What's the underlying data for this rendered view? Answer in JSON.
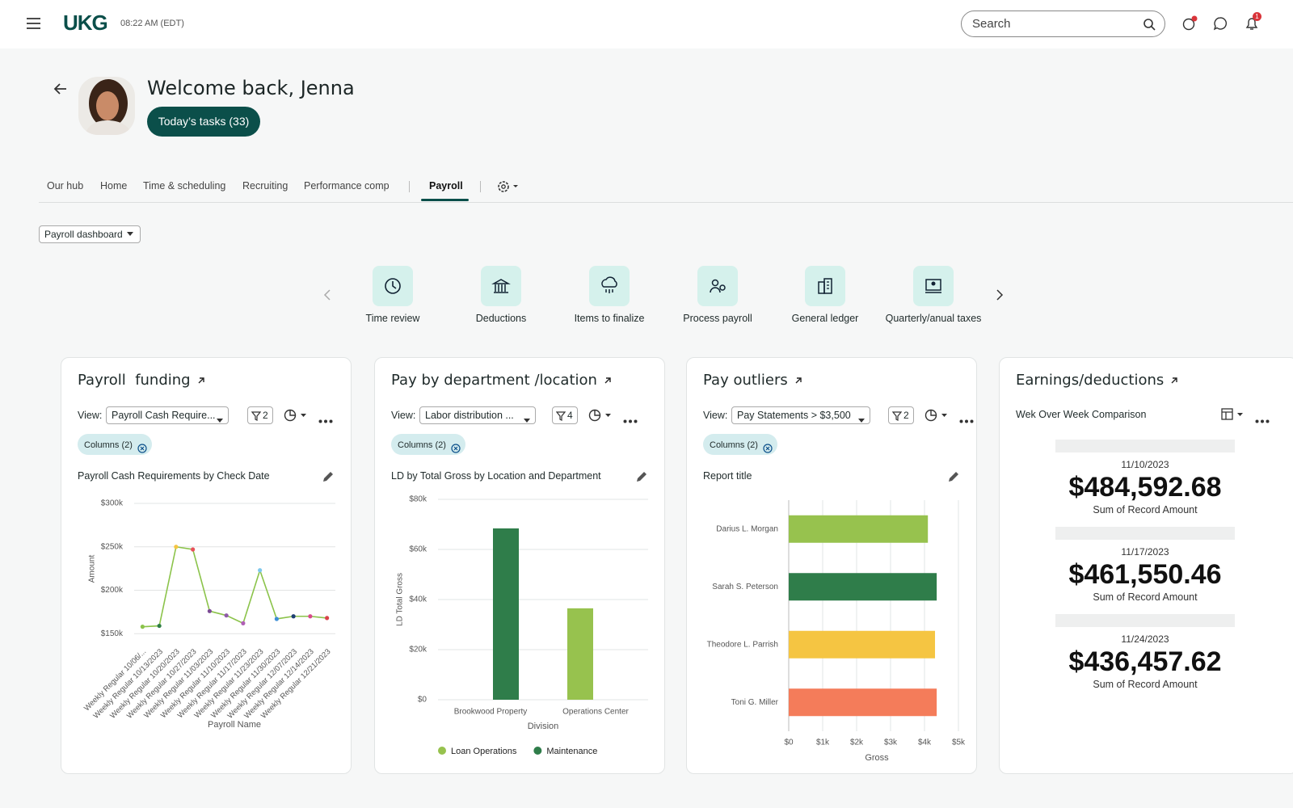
{
  "header": {
    "logo": "UKG",
    "time": "08:22 AM (EDT)",
    "search": "Search",
    "notification_count": "1"
  },
  "welcome": {
    "title": "Welcome back, Jenna",
    "tasks_button": "Today’s tasks (33)"
  },
  "tabs": {
    "items": [
      "Our hub",
      "Home",
      "Time & scheduling",
      "Recruiting",
      "Performance comp",
      "Payroll"
    ],
    "active_index": 5
  },
  "dashboard_select": "Payroll dashboard",
  "quick_actions": [
    "Time review",
    "Deductions",
    "Items to finalize",
    "Process payroll",
    "General ledger",
    "Quarterly/anual taxes"
  ],
  "cards": [
    {
      "title": "Payroll  funding",
      "view_label": "View:",
      "view": "Payroll Cash Require...",
      "filter_count": "2",
      "chip": "Columns (2)"
    },
    {
      "title": "Pay by department /location",
      "view_label": "View:",
      "view": "Labor distribution ...",
      "filter_count": "4",
      "chip": "Columns (2)"
    },
    {
      "title": "Pay outliers",
      "view_label": "View:",
      "view": "Pay Statements > $3,500",
      "filter_count": "2",
      "chip": "Columns (2)"
    }
  ],
  "earnings": {
    "title": "Earnings/deductions",
    "subtitle": "Wek Over Week Comparison",
    "entries": [
      {
        "date": "11/10/2023",
        "amount": "$484,592.68",
        "label": "Sum of Record Amount"
      },
      {
        "date": "11/17/2023",
        "amount": "$461,550.46",
        "label": "Sum of Record Amount"
      },
      {
        "date": "11/24/2023",
        "amount": "$436,457.62",
        "label": "Sum of Record Amount"
      }
    ]
  },
  "chart_data": [
    {
      "type": "line",
      "title": "Payroll Cash Requirements by Check Date",
      "categories": [
        "Weekly Regular 10/06/...",
        "Weekly Regular 10/13/2023",
        "Weekly Regular 10/20/2023",
        "Weekly Regular 10/27/2023",
        "Weekly Regular 11/03/2023",
        "Weekly Regular 11/10/2023",
        "Weekly Regular 11/17/2023",
        "Weekly Regular 11/23/2023",
        "Weekly Regular 11/30/2023",
        "Weekly Regular 12/07/2023",
        "Weekly Regular 12/14/2023",
        "Weekly Regular 12/21/2023"
      ],
      "values": [
        158000,
        159000,
        250000,
        247000,
        176000,
        171000,
        162000,
        223000,
        167000,
        170000,
        170000,
        168000
      ],
      "color": "#8bc34a",
      "marker_colors": [
        "#8bc34a",
        "#2e7d45",
        "#f5c542",
        "#e8515a",
        "#7b4b94",
        "#8e5aa8",
        "#b05fb5",
        "#7fc8ec",
        "#3d8fd6",
        "#1f3f73",
        "#d84a8c",
        "#d9434a"
      ],
      "xlabel": "Payroll Name",
      "ylabel": "Amount",
      "ylim": [
        140000,
        300000
      ],
      "yticks": [
        {
          "value": 150000,
          "label": "$150k"
        },
        {
          "value": 200000,
          "label": "$200k"
        },
        {
          "value": 250000,
          "label": "$250k"
        },
        {
          "value": 300000,
          "label": "$300k"
        }
      ],
      "grid": true
    },
    {
      "type": "bar",
      "title": "LD by Total Gross by Location and Department",
      "categories": [
        "Brookwood Property",
        "Operations Center"
      ],
      "series": [
        {
          "name": "Loan Operations",
          "color": "#97c24e",
          "values": [
            null,
            36500
          ]
        },
        {
          "name": "Maintenance",
          "color": "#2f7d4a",
          "values": [
            68400,
            null
          ]
        }
      ],
      "xlabel": "Division",
      "ylabel": "LD Total Gross",
      "ylim": [
        0,
        80000
      ],
      "yticks": [
        {
          "value": 0,
          "label": "$0"
        },
        {
          "value": 20000,
          "label": "$20k"
        },
        {
          "value": 40000,
          "label": "$40k"
        },
        {
          "value": 60000,
          "label": "$60k"
        },
        {
          "value": 80000,
          "label": "$80k"
        }
      ],
      "grid": true,
      "legend": "bottom"
    },
    {
      "type": "hbar",
      "title": "Report title",
      "categories": [
        "Darius L. Morgan",
        "Sarah S. Peterson",
        "Theodore L. Parrish",
        "Toni G. Miller"
      ],
      "values": [
        4100,
        4360,
        4310,
        4360
      ],
      "colors": [
        "#97c24e",
        "#2f7d4a",
        "#f5c542",
        "#f47c5a"
      ],
      "xlabel": "Gross",
      "xlim": [
        0,
        5000
      ],
      "xticks": [
        {
          "value": 0,
          "label": "$0"
        },
        {
          "value": 1000,
          "label": "$1k"
        },
        {
          "value": 2000,
          "label": "$2k"
        },
        {
          "value": 3000,
          "label": "$3k"
        },
        {
          "value": 4000,
          "label": "$4k"
        },
        {
          "value": 5000,
          "label": "$5k"
        }
      ],
      "grid": true
    }
  ]
}
